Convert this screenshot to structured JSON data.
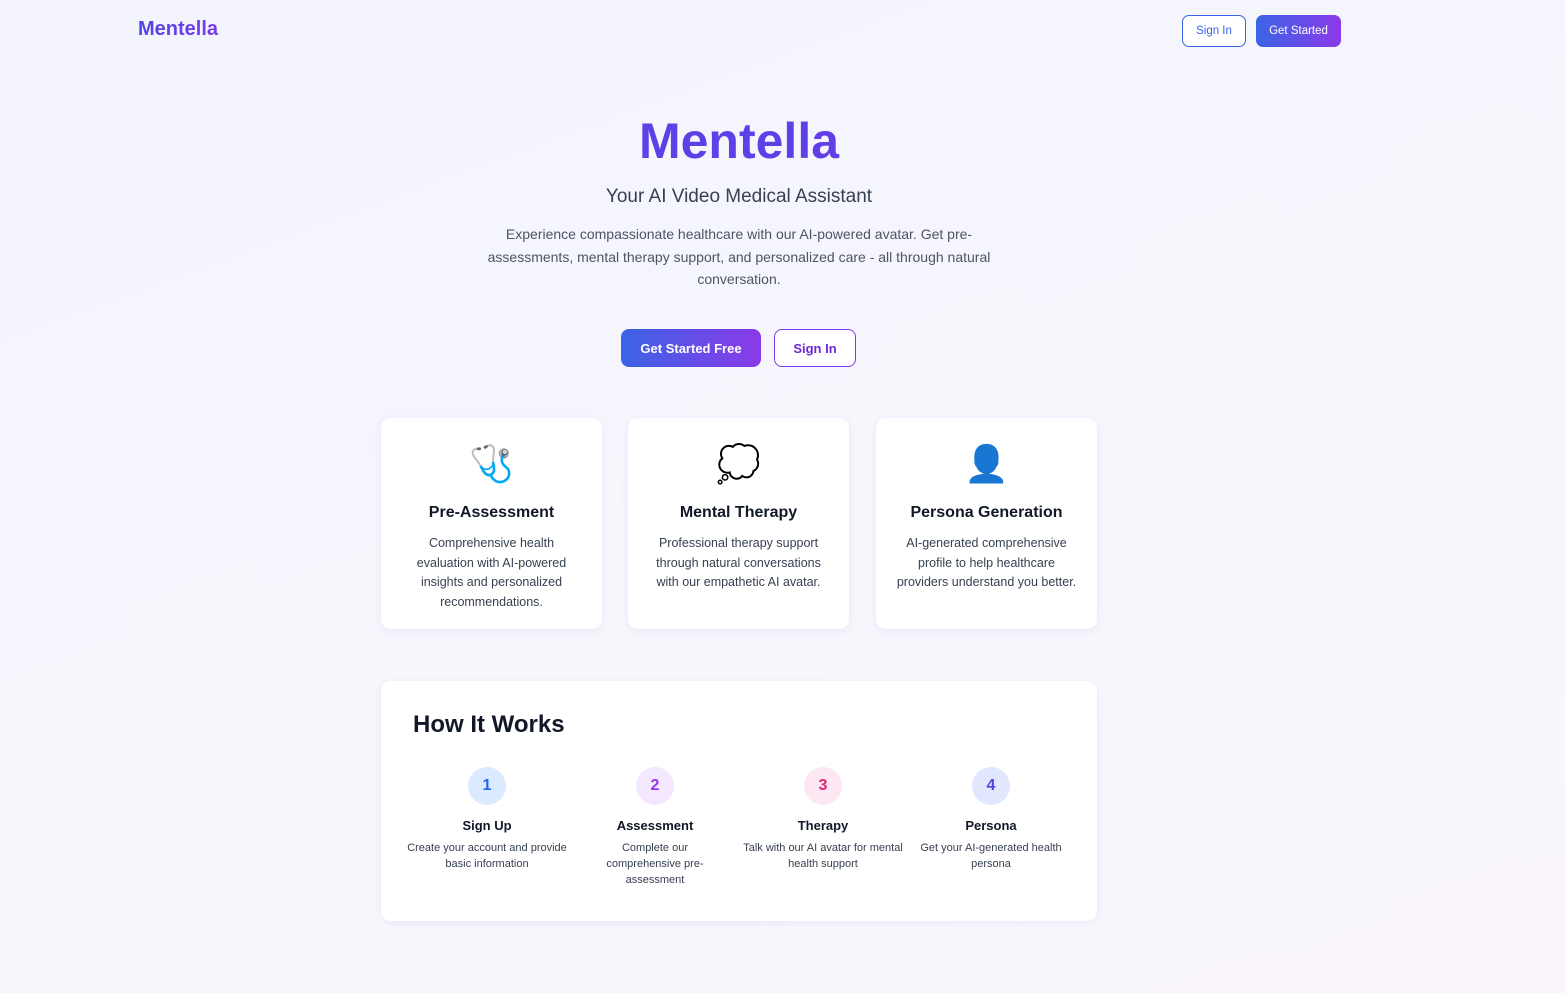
{
  "nav": {
    "logo": "Mentella",
    "sign_in": "Sign In",
    "get_started": "Get Started"
  },
  "hero": {
    "title": "Mentella",
    "subtitle": "Your AI Video Medical Assistant",
    "description": "Experience compassionate healthcare with our AI-powered avatar. Get pre-assessments, mental therapy support, and personalized care - all through natural conversation.",
    "cta_primary": "Get Started Free",
    "cta_secondary": "Sign In"
  },
  "features": [
    {
      "icon": "🩺",
      "title": "Pre-Assessment",
      "text": "Comprehensive health evaluation with AI-powered insights and personalized recommendations."
    },
    {
      "icon": "💭",
      "title": "Mental Therapy",
      "text": "Professional therapy support through natural conversations with our empathetic AI avatar."
    },
    {
      "icon": "👤",
      "title": "Persona Generation",
      "text": "AI-generated comprehensive profile to help healthcare providers understand you better."
    }
  ],
  "how": {
    "title": "How It Works",
    "steps": [
      {
        "num": "1",
        "title": "Sign Up",
        "text": "Create your account and provide basic information",
        "bg": "#dbeafe",
        "color": "#2563eb"
      },
      {
        "num": "2",
        "title": "Assessment",
        "text": "Complete our comprehensive pre-assessment",
        "bg": "#f3e8ff",
        "color": "#9333ea"
      },
      {
        "num": "3",
        "title": "Therapy",
        "text": "Talk with our AI avatar for mental health support",
        "bg": "#fce7f3",
        "color": "#db2777"
      },
      {
        "num": "4",
        "title": "Persona",
        "text": "Get your AI-generated health persona",
        "bg": "#e0e7ff",
        "color": "#4f46e5"
      }
    ]
  }
}
